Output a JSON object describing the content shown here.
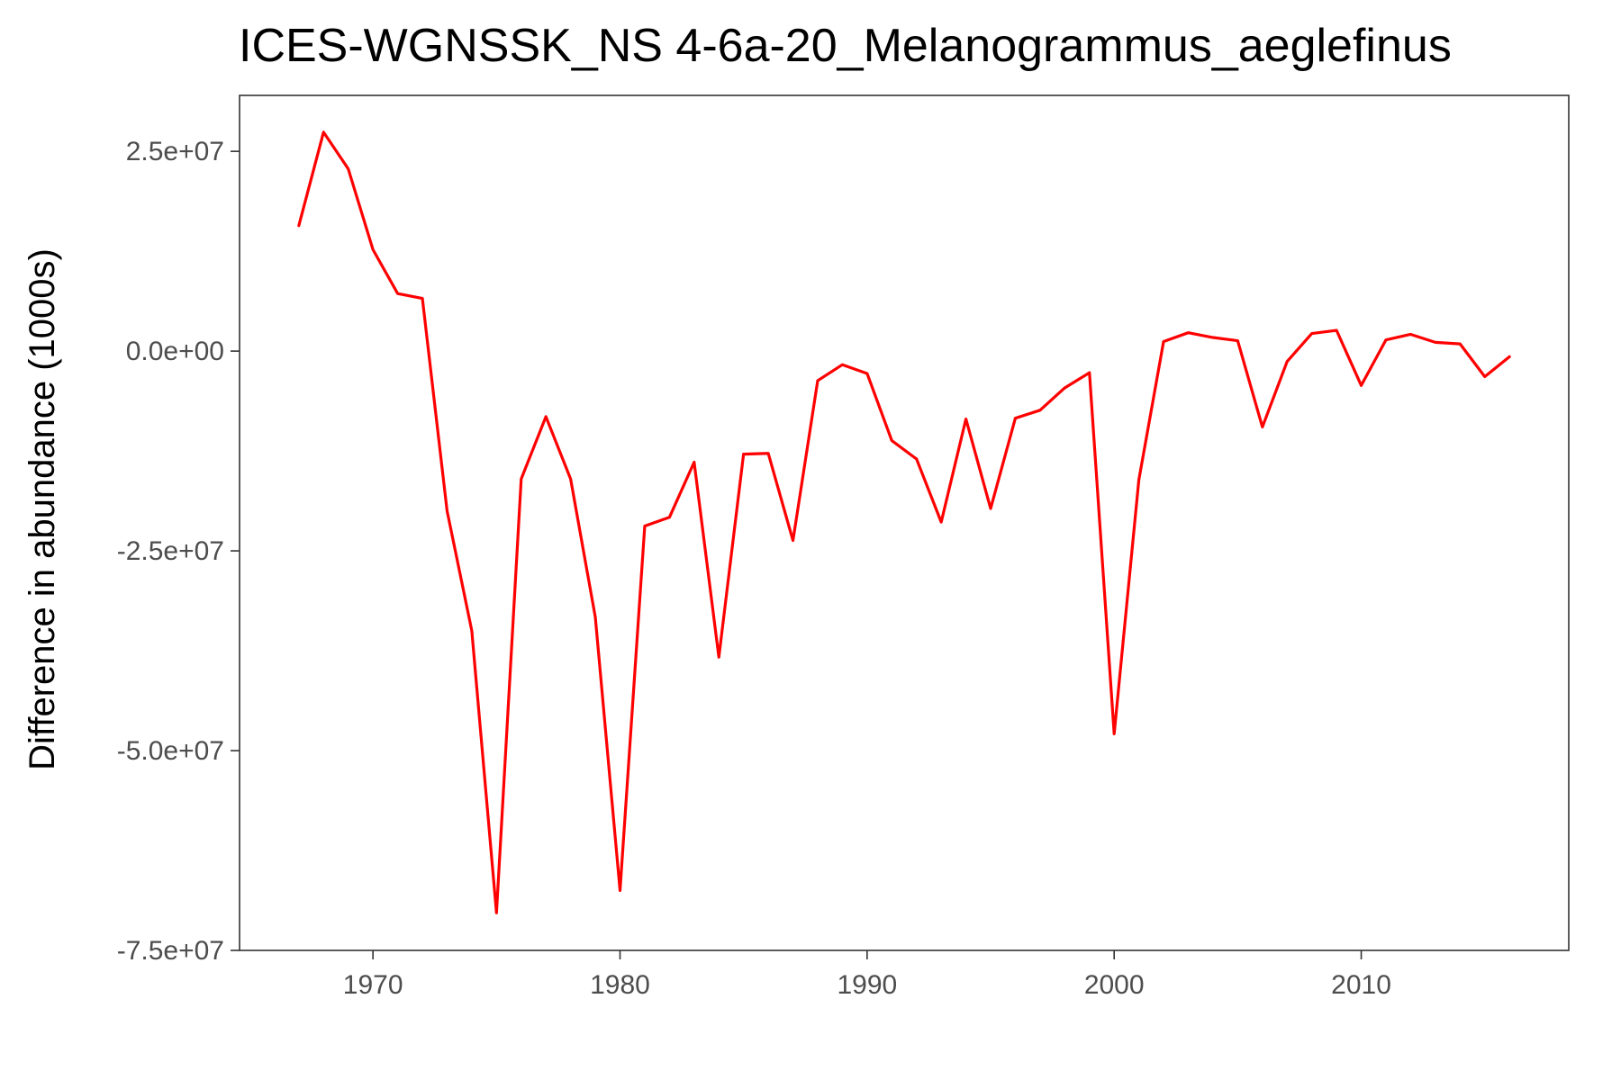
{
  "chart_data": {
    "type": "line",
    "title": "ICES-WGNSSK_NS  4-6a-20_Melanogrammus_aeglefinus",
    "xlabel": "",
    "ylabel": "Difference in abundance (1000s)",
    "xlim": [
      1964.6,
      2018.4
    ],
    "ylim": [
      -75000000,
      32000000
    ],
    "x_ticks": [
      1970,
      1980,
      1990,
      2000,
      2010
    ],
    "x_tick_labels": [
      "1970",
      "1980",
      "1990",
      "2000",
      "2010"
    ],
    "y_ticks": [
      25000000,
      0,
      -25000000,
      -50000000,
      -75000000
    ],
    "y_tick_labels": [
      "2.5e+07",
      "0.0e+00",
      "-2.5e+07",
      "-5.0e+07",
      "-7.5e+07"
    ],
    "grid": false,
    "legend": "none",
    "line_color": "#ff0000",
    "series": [
      {
        "x": [
          1967,
          1968,
          1969,
          1970,
          1971,
          1972,
          1973,
          1974,
          1975,
          1976,
          1977,
          1978,
          1979,
          1980,
          1981,
          1982,
          1983,
          1984,
          1985,
          1986,
          1987,
          1988,
          1989,
          1990,
          1991,
          1992,
          1993,
          1994,
          1995,
          1996,
          1997,
          1998,
          1999,
          2000,
          2001,
          2002,
          2003,
          2004,
          2005,
          2006,
          2007,
          2008,
          2009,
          2010,
          2011,
          2012,
          2013,
          2014,
          2015,
          2016
        ],
        "values": [
          15700000,
          27400000,
          22800000,
          12700000,
          7200000,
          6600000,
          -20000000,
          -35000000,
          -70300000,
          -16000000,
          -8200000,
          -16000000,
          -33300000,
          -67500000,
          -21900000,
          -20800000,
          -13900000,
          -38300000,
          -12900000,
          -12800000,
          -23700000,
          -3700000,
          -1700000,
          -2800000,
          -11200000,
          -13500000,
          -21400000,
          -8500000,
          -19700000,
          -8400000,
          -7400000,
          -4600000,
          -2700000,
          -47900000,
          -16100000,
          1200000,
          2300000,
          1700000,
          1300000,
          -9500000,
          -1300000,
          2200000,
          2600000,
          -4300000,
          1400000,
          2100000,
          1100000,
          900000,
          -3200000,
          -700000
        ]
      }
    ]
  }
}
